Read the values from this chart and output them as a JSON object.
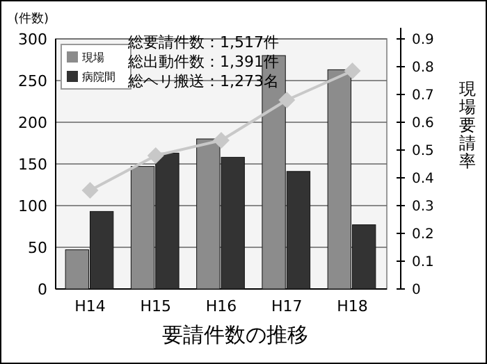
{
  "chart_data": {
    "type": "bar",
    "xlabel": "要請件数の推移",
    "ylabel": "(件数)",
    "y2label": "現場要請率",
    "categories": [
      "H14",
      "H15",
      "H16",
      "H17",
      "H18"
    ],
    "series": [
      {
        "name": "現場",
        "color": "#8c8c8c",
        "values": [
          47,
          147,
          180,
          280,
          263
        ]
      },
      {
        "name": "病院間",
        "color": "#333333",
        "values": [
          93,
          163,
          158,
          141,
          77
        ]
      },
      {
        "type": "line",
        "axis": "y2",
        "color": "#c8c8c8",
        "marker": "diamond",
        "values": [
          0.355,
          0.48,
          0.535,
          0.68,
          0.785
        ]
      }
    ],
    "ylim": [
      0,
      300
    ],
    "yticks": [
      0,
      50,
      100,
      150,
      200,
      250,
      300
    ],
    "y2lim": [
      0,
      0.9
    ],
    "y2ticks": [
      0,
      0.1,
      0.2,
      0.3,
      0.4,
      0.5,
      0.6,
      0.7,
      0.8,
      0.9
    ],
    "grid": "y",
    "legend": "top left",
    "annotations": [
      "総要請件数：1,517件",
      "総出動件数：1,391件",
      "総ヘリ搬送：1,273名"
    ]
  }
}
